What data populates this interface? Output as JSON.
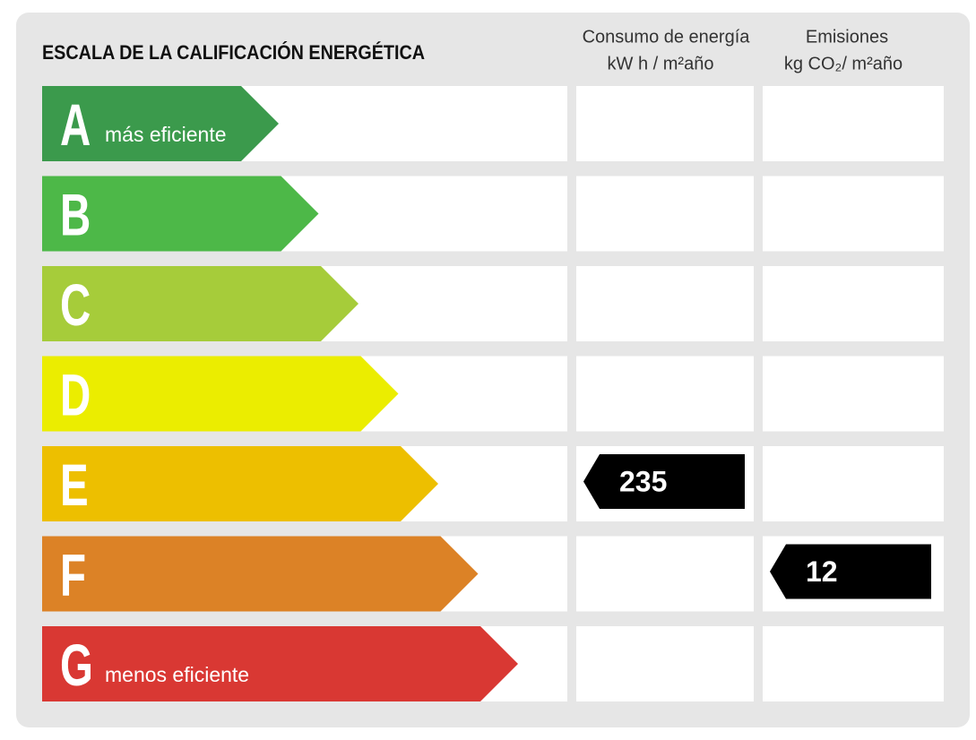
{
  "title": "ESCALA DE LA CALIFICACIÓN ENERGÉTICA",
  "columns": {
    "consumption": {
      "label": "Consumo de energía",
      "unit": "kW h / m²año"
    },
    "emissions": {
      "label": "Emisiones",
      "unit": "kg CO₂/ m²año"
    }
  },
  "ratings": [
    {
      "letter": "A",
      "note": "más eficiente",
      "color": "#3b9a4c"
    },
    {
      "letter": "B",
      "color": "#4db848"
    },
    {
      "letter": "C",
      "color": "#a6cc3a"
    },
    {
      "letter": "D",
      "color": "#ebed00"
    },
    {
      "letter": "E",
      "color": "#edbf00"
    },
    {
      "letter": "F",
      "color": "#dc8226"
    },
    {
      "letter": "G",
      "note": "menos eficiente",
      "color": "#d93833"
    }
  ],
  "consumption": {
    "rating": "E",
    "value": 235
  },
  "emissions": {
    "rating": "F",
    "value": 12
  }
}
